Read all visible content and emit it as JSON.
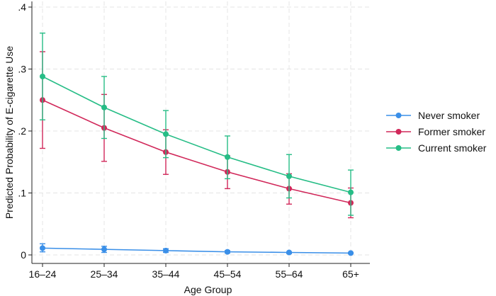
{
  "chart_data": {
    "type": "line",
    "title": "",
    "xlabel": "Age Group",
    "ylabel": "Predicted Probability of E-cigarette Use",
    "categories": [
      "16–24",
      "25–34",
      "35–44",
      "45–54",
      "55–64",
      "65+"
    ],
    "ylim": [
      0,
      0.4
    ],
    "yticks": [
      0,
      0.1,
      0.2,
      0.3,
      0.4
    ],
    "ytick_labels": [
      "0",
      ".1",
      ".2",
      ".3",
      ".4"
    ],
    "grid": true,
    "legend_position": "right",
    "series": [
      {
        "name": "Never smoker",
        "color": "#3a8fe8",
        "values": [
          0.011,
          0.009,
          0.007,
          0.005,
          0.004,
          0.003
        ],
        "ci_low": [
          0.005,
          0.004,
          0.004,
          0.003,
          0.002,
          0.002
        ],
        "ci_high": [
          0.018,
          0.014,
          0.01,
          0.007,
          0.005,
          0.004
        ]
      },
      {
        "name": "Former smoker",
        "color": "#d1285a",
        "values": [
          0.25,
          0.205,
          0.166,
          0.134,
          0.107,
          0.084
        ],
        "ci_low": [
          0.172,
          0.151,
          0.13,
          0.107,
          0.082,
          0.06
        ],
        "ci_high": [
          0.328,
          0.259,
          0.202,
          0.16,
          0.131,
          0.108
        ]
      },
      {
        "name": "Current smoker",
        "color": "#26bd86",
        "values": [
          0.288,
          0.238,
          0.195,
          0.158,
          0.127,
          0.101
        ],
        "ci_low": [
          0.218,
          0.188,
          0.157,
          0.123,
          0.092,
          0.064
        ],
        "ci_high": [
          0.358,
          0.288,
          0.233,
          0.192,
          0.162,
          0.137
        ]
      }
    ]
  }
}
